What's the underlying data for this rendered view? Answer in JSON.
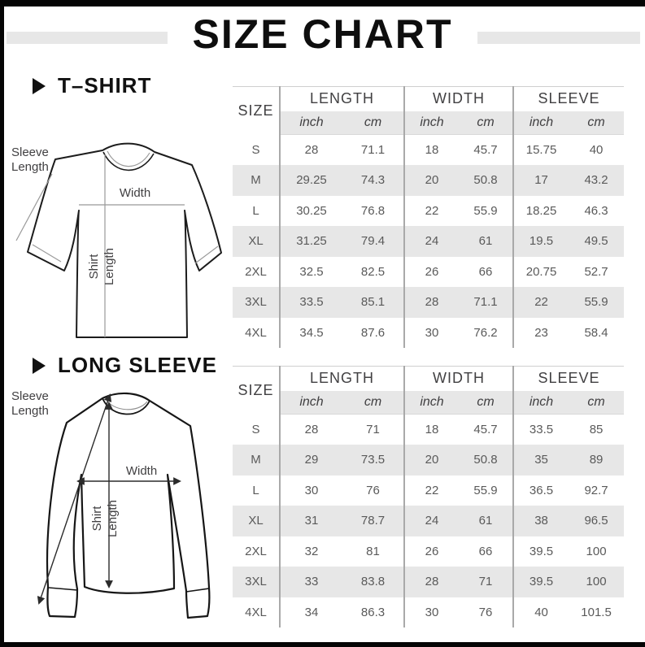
{
  "title": "SIZE CHART",
  "sections": {
    "tshirt": {
      "heading": "T–SHIRT",
      "diagram": {
        "sleeve_line1": "Sleeve",
        "sleeve_line2": "Length",
        "width": "Width",
        "shirt_line1": "Shirt",
        "shirt_line2": "Length"
      },
      "table": {
        "size_label": "SIZE",
        "groups": [
          "LENGTH",
          "WIDTH",
          "SLEEVE"
        ],
        "unit_inch": "inch",
        "unit_cm": "cm",
        "rows": [
          {
            "size": "S",
            "values": [
              "28",
              "71.1",
              "18",
              "45.7",
              "15.75",
              "40"
            ]
          },
          {
            "size": "M",
            "values": [
              "29.25",
              "74.3",
              "20",
              "50.8",
              "17",
              "43.2"
            ]
          },
          {
            "size": "L",
            "values": [
              "30.25",
              "76.8",
              "22",
              "55.9",
              "18.25",
              "46.3"
            ]
          },
          {
            "size": "XL",
            "values": [
              "31.25",
              "79.4",
              "24",
              "61",
              "19.5",
              "49.5"
            ]
          },
          {
            "size": "2XL",
            "values": [
              "32.5",
              "82.5",
              "26",
              "66",
              "20.75",
              "52.7"
            ]
          },
          {
            "size": "3XL",
            "values": [
              "33.5",
              "85.1",
              "28",
              "71.1",
              "22",
              "55.9"
            ]
          },
          {
            "size": "4XL",
            "values": [
              "34.5",
              "87.6",
              "30",
              "76.2",
              "23",
              "58.4"
            ]
          }
        ]
      }
    },
    "long_sleeve": {
      "heading": "LONG SLEEVE",
      "diagram": {
        "sleeve_line1": "Sleeve",
        "sleeve_line2": "Length",
        "width": "Width",
        "shirt_line1": "Shirt",
        "shirt_line2": "Length"
      },
      "table": {
        "size_label": "SIZE",
        "groups": [
          "LENGTH",
          "WIDTH",
          "SLEEVE"
        ],
        "unit_inch": "inch",
        "unit_cm": "cm",
        "rows": [
          {
            "size": "S",
            "values": [
              "28",
              "71",
              "18",
              "45.7",
              "33.5",
              "85"
            ]
          },
          {
            "size": "M",
            "values": [
              "29",
              "73.5",
              "20",
              "50.8",
              "35",
              "89"
            ]
          },
          {
            "size": "L",
            "values": [
              "30",
              "76",
              "22",
              "55.9",
              "36.5",
              "92.7"
            ]
          },
          {
            "size": "XL",
            "values": [
              "31",
              "78.7",
              "24",
              "61",
              "38",
              "96.5"
            ]
          },
          {
            "size": "2XL",
            "values": [
              "32",
              "81",
              "26",
              "66",
              "39.5",
              "100"
            ]
          },
          {
            "size": "3XL",
            "values": [
              "33",
              "83.8",
              "28",
              "71",
              "39.5",
              "100"
            ]
          },
          {
            "size": "4XL",
            "values": [
              "34",
              "86.3",
              "30",
              "76",
              "40",
              "101.5"
            ]
          }
        ]
      }
    }
  },
  "colors": {
    "shaded_row": "#e7e7e7",
    "divider": "#a9a9a9",
    "data_text": "#5a5a5a",
    "header_text": "#414042",
    "frame_black": "#050505"
  },
  "chart_data": [
    {
      "type": "table",
      "title": "T-SHIRT",
      "columns": [
        "SIZE",
        "LENGTH inch",
        "LENGTH cm",
        "WIDTH inch",
        "WIDTH cm",
        "SLEEVE inch",
        "SLEEVE cm"
      ],
      "rows": [
        [
          "S",
          28,
          71.1,
          18,
          45.7,
          15.75,
          40
        ],
        [
          "M",
          29.25,
          74.3,
          20,
          50.8,
          17,
          43.2
        ],
        [
          "L",
          30.25,
          76.8,
          22,
          55.9,
          18.25,
          46.3
        ],
        [
          "XL",
          31.25,
          79.4,
          24,
          61,
          19.5,
          49.5
        ],
        [
          "2XL",
          32.5,
          82.5,
          26,
          66,
          20.75,
          52.7
        ],
        [
          "3XL",
          33.5,
          85.1,
          28,
          71.1,
          22,
          55.9
        ],
        [
          "4XL",
          34.5,
          87.6,
          30,
          76.2,
          23,
          58.4
        ]
      ]
    },
    {
      "type": "table",
      "title": "LONG SLEEVE",
      "columns": [
        "SIZE",
        "LENGTH inch",
        "LENGTH cm",
        "WIDTH inch",
        "WIDTH cm",
        "SLEEVE inch",
        "SLEEVE cm"
      ],
      "rows": [
        [
          "S",
          28,
          71,
          18,
          45.7,
          33.5,
          85
        ],
        [
          "M",
          29,
          73.5,
          20,
          50.8,
          35,
          89
        ],
        [
          "L",
          30,
          76,
          22,
          55.9,
          36.5,
          92.7
        ],
        [
          "XL",
          31,
          78.7,
          24,
          61,
          38,
          96.5
        ],
        [
          "2XL",
          32,
          81,
          26,
          66,
          39.5,
          100
        ],
        [
          "3XL",
          33,
          83.8,
          28,
          71,
          39.5,
          100
        ],
        [
          "4XL",
          34,
          86.3,
          30,
          76,
          40,
          101.5
        ]
      ]
    }
  ]
}
